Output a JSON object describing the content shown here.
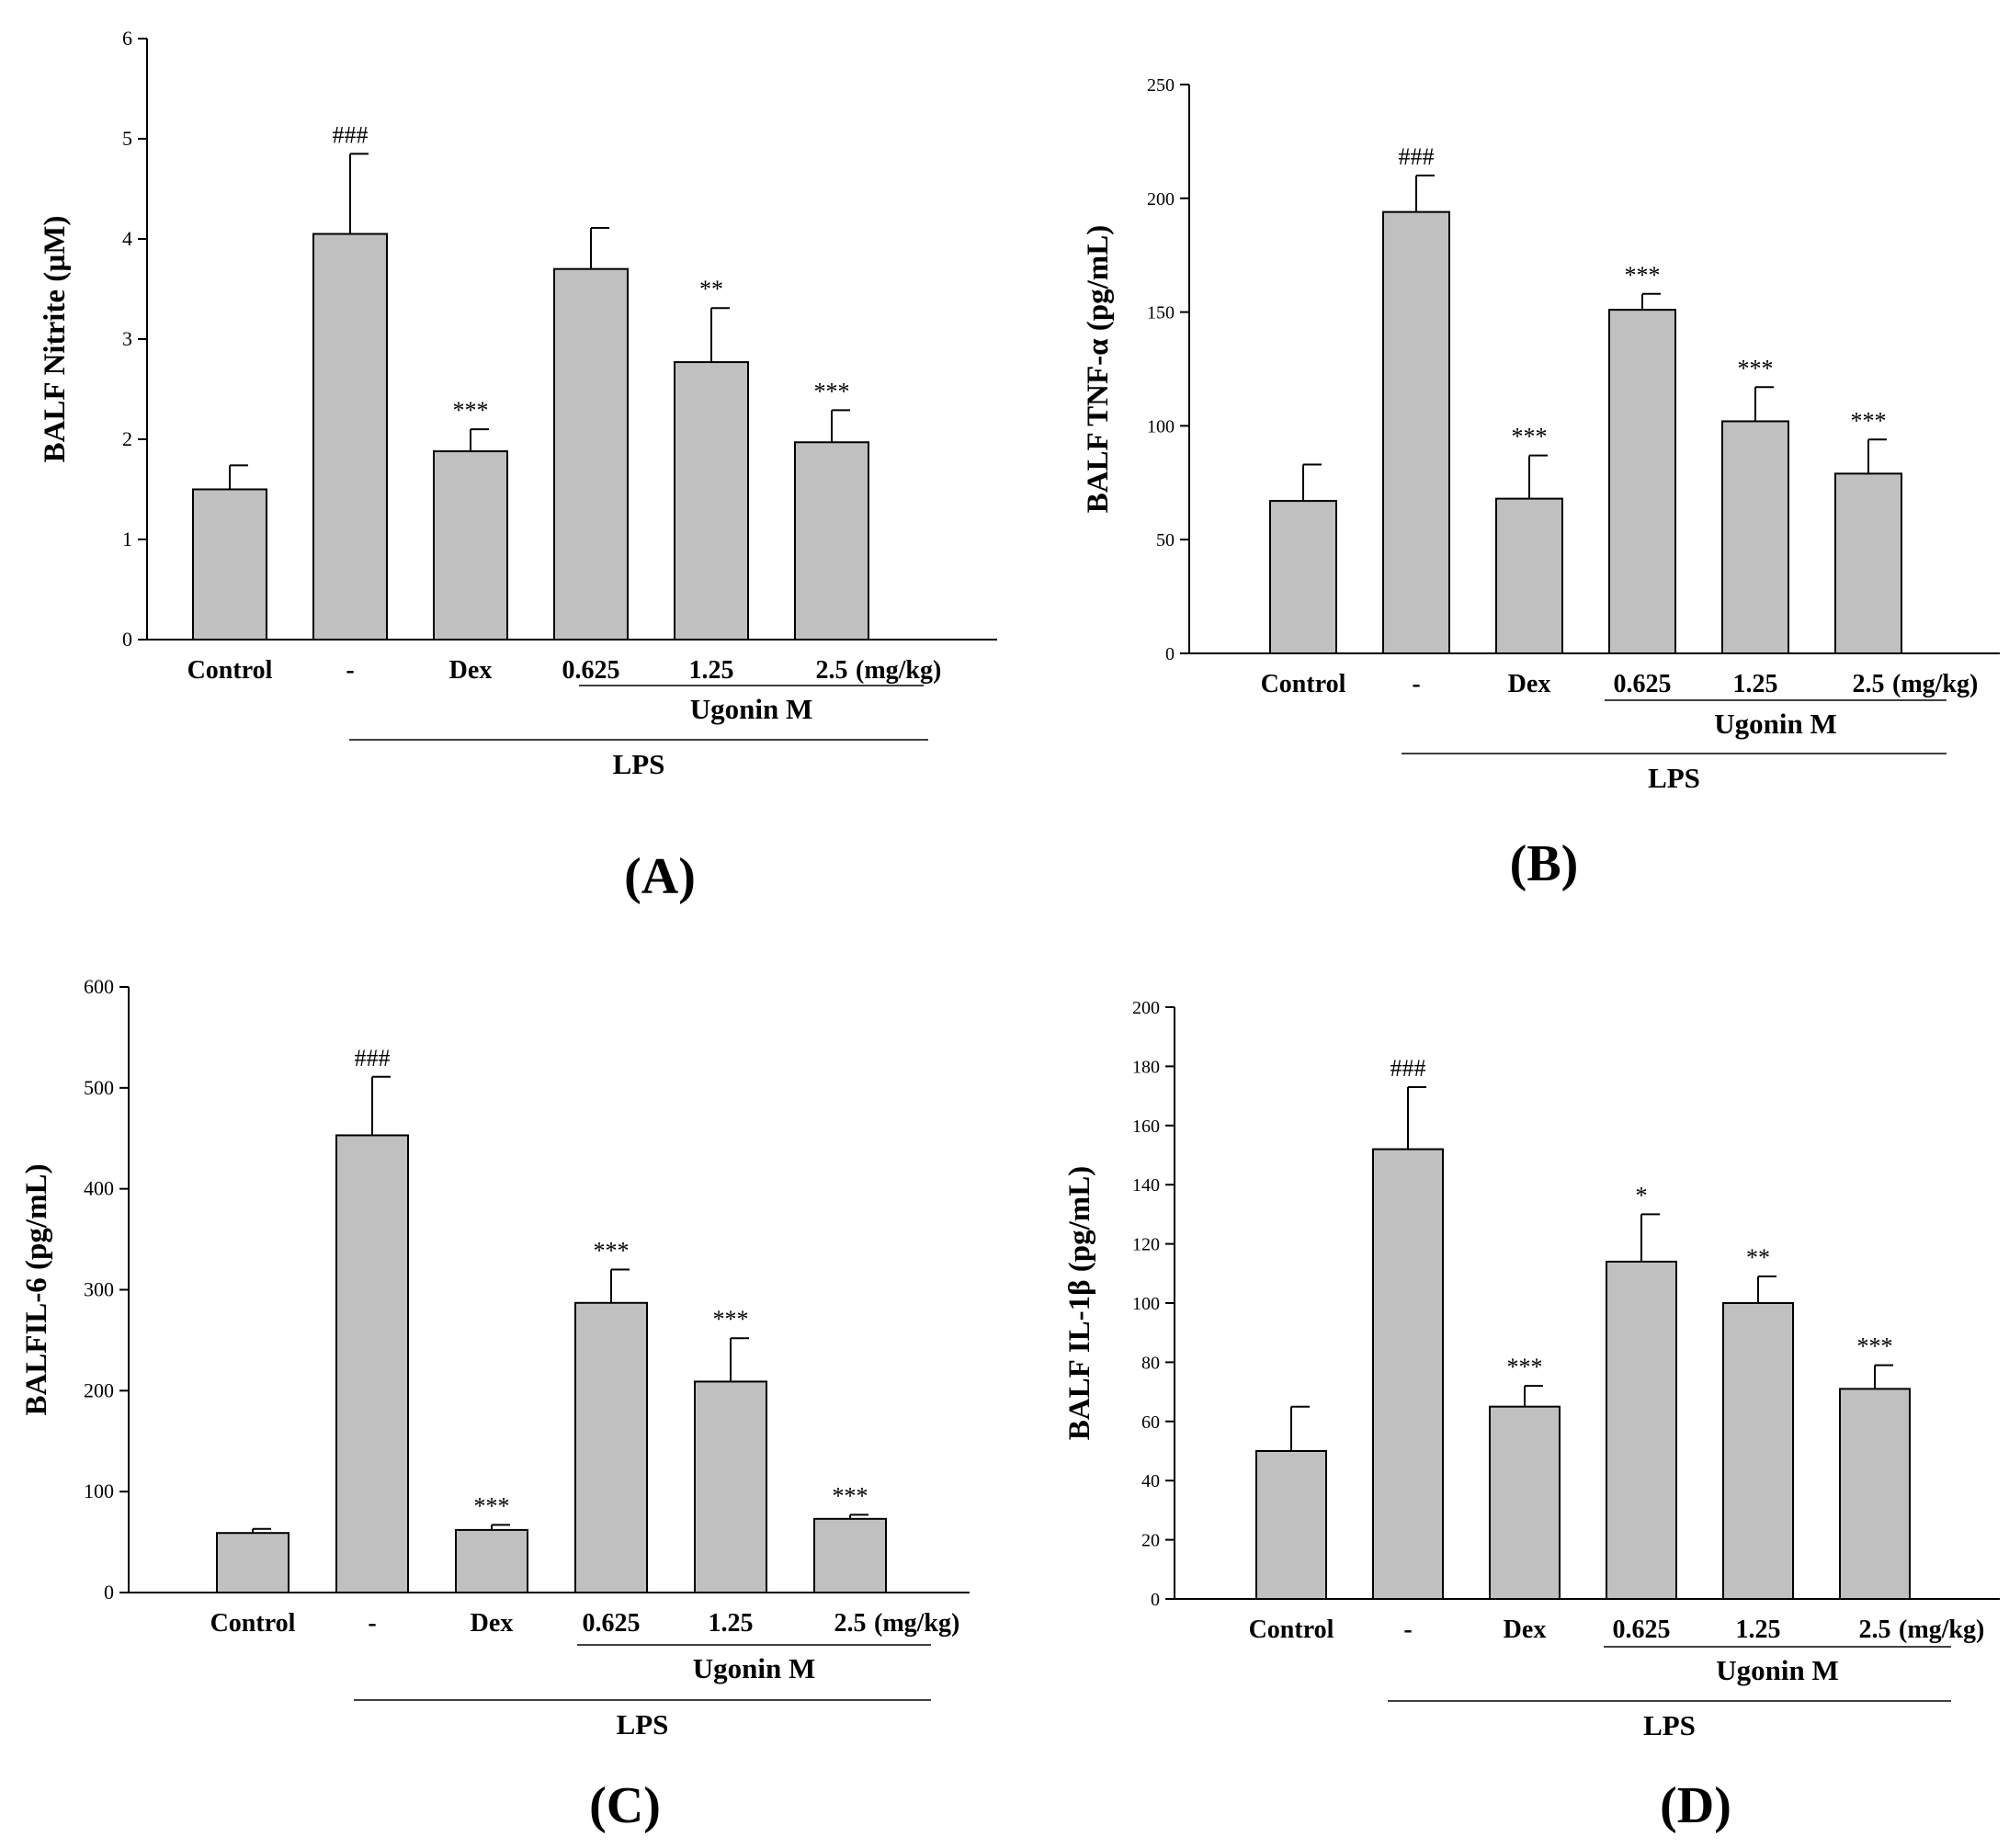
{
  "chart_data": [
    {
      "type": "bar",
      "panel_label": "(A)",
      "ylabel": "BALF Nitrite (µM)",
      "ylim": [
        0,
        6
      ],
      "yticks": [
        "0",
        "1",
        "2",
        "3",
        "4",
        "5",
        "6"
      ],
      "categories": [
        "Control",
        "-",
        "Dex",
        "0.625",
        "1.25",
        "2.5"
      ],
      "unit_label": "(mg/kg)",
      "values": [
        1.5,
        4.05,
        1.88,
        3.7,
        2.77,
        1.97
      ],
      "errors": [
        0.24,
        0.8,
        0.22,
        0.41,
        0.54,
        0.32
      ],
      "significance": [
        "",
        "###",
        "***",
        "",
        "**",
        "***"
      ],
      "group_labels": {
        "drug": "Ugonin M",
        "stimulus": "LPS"
      }
    },
    {
      "type": "bar",
      "panel_label": "(B)",
      "ylabel": "BALF TNF-α (pg/mL)",
      "ylim": [
        0,
        250
      ],
      "yticks": [
        "0",
        "50",
        "100",
        "150",
        "200",
        "250"
      ],
      "categories": [
        "Control",
        "-",
        "Dex",
        "0.625",
        "1.25",
        "2.5"
      ],
      "unit_label": "(mg/kg)",
      "values": [
        67,
        194,
        68,
        151,
        102,
        79
      ],
      "errors": [
        16,
        16,
        19,
        7,
        15,
        15
      ],
      "significance": [
        "",
        "###",
        "***",
        "***",
        "***",
        "***"
      ],
      "group_labels": {
        "drug": "Ugonin M",
        "stimulus": "LPS"
      }
    },
    {
      "type": "bar",
      "panel_label": "(C)",
      "ylabel": "BALFIL-6 (pg/mL)",
      "ylim": [
        0,
        600
      ],
      "yticks": [
        "0",
        "100",
        "200",
        "300",
        "400",
        "500",
        "600"
      ],
      "categories": [
        "Control",
        "-",
        "Dex",
        "0.625",
        "1.25",
        "2.5"
      ],
      "unit_label": "(mg/kg)",
      "values": [
        59,
        453,
        62,
        287,
        209,
        73
      ],
      "errors": [
        4,
        58,
        5,
        33,
        43,
        4
      ],
      "significance": [
        "",
        "###",
        "***",
        "***",
        "***",
        "***"
      ],
      "group_labels": {
        "drug": "Ugonin M",
        "stimulus": "LPS"
      }
    },
    {
      "type": "bar",
      "panel_label": "(D)",
      "ylabel": "BALF IL-1β (pg/mL)",
      "ylim": [
        0,
        200
      ],
      "yticks": [
        "0",
        "20",
        "40",
        "60",
        "80",
        "100",
        "120",
        "140",
        "160",
        "180",
        "200"
      ],
      "categories": [
        "Control",
        "-",
        "Dex",
        "0.625",
        "1.25",
        "2.5"
      ],
      "unit_label": "(mg/kg)",
      "values": [
        50,
        152,
        65,
        114,
        100,
        71
      ],
      "errors": [
        15,
        21,
        7,
        16,
        9,
        8
      ],
      "significance": [
        "",
        "###",
        "***",
        "*",
        "**",
        "***"
      ],
      "group_labels": {
        "drug": "Ugonin M",
        "stimulus": "LPS"
      }
    }
  ],
  "colors": {
    "bar_fill": "#c0c0c0",
    "bar_stroke": "#000000",
    "axis": "#000000"
  }
}
